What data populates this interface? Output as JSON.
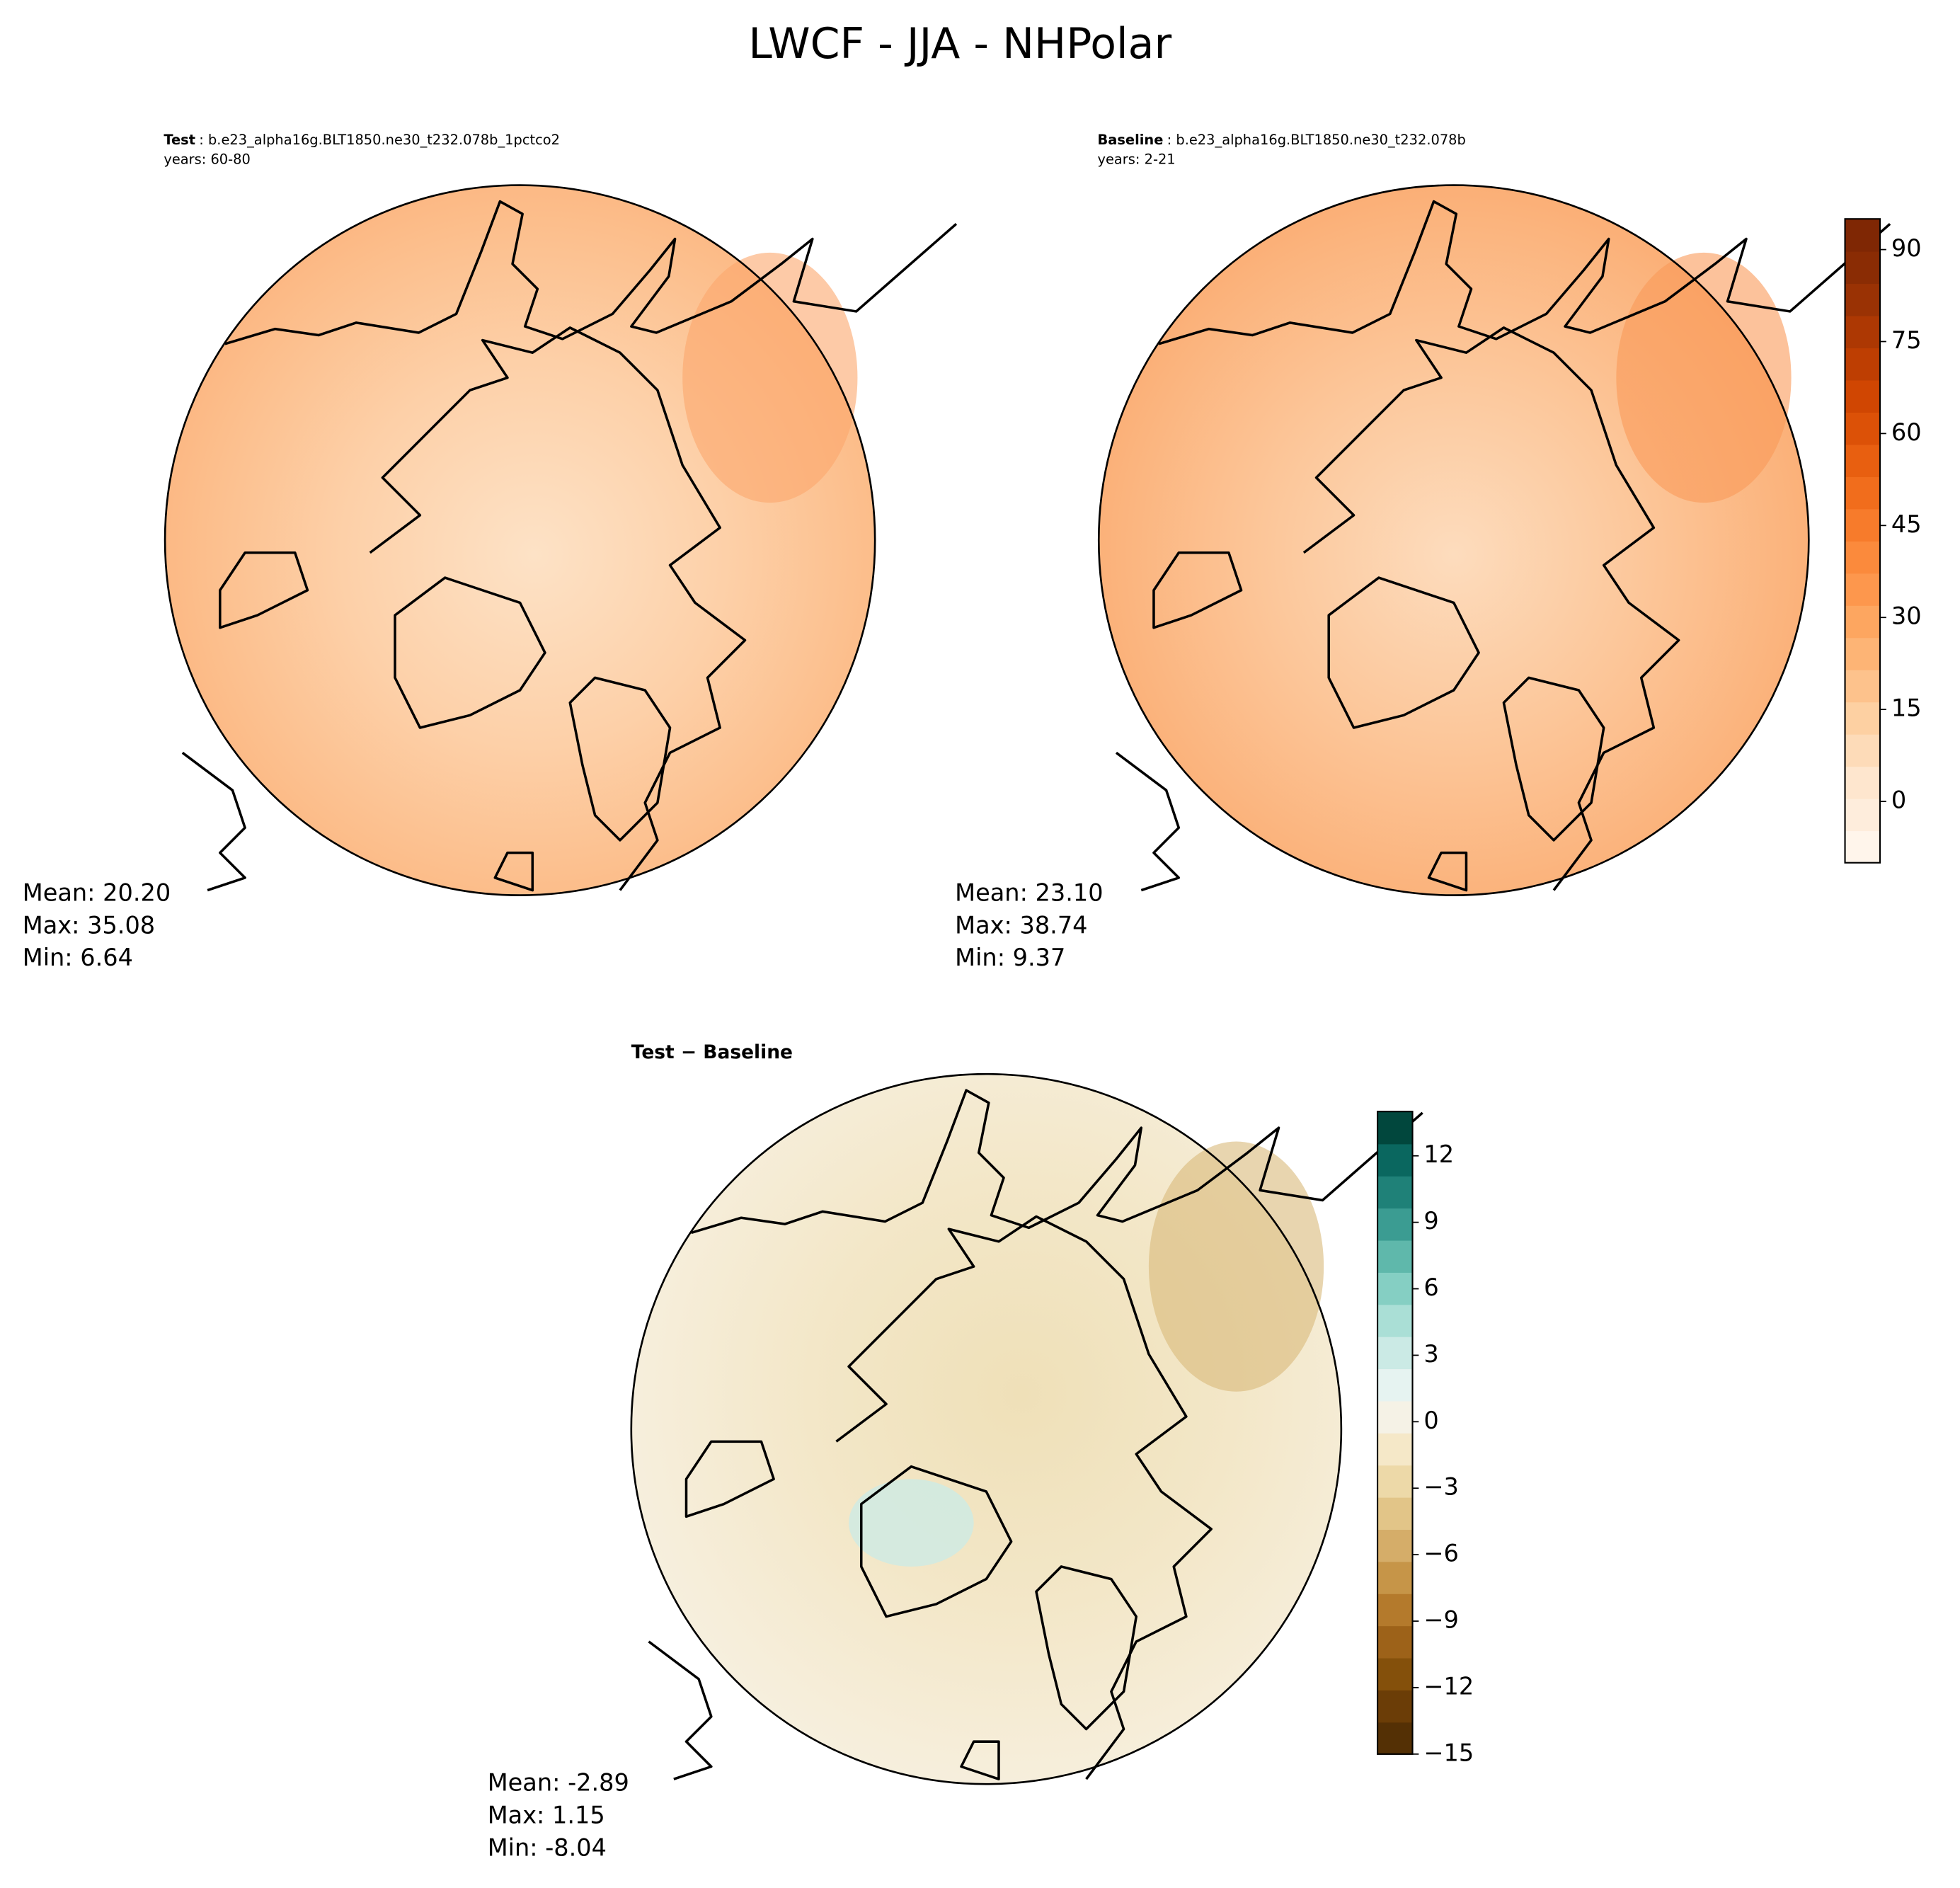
{
  "title": "LWCF - JJA - NHPolar",
  "panels": [
    {
      "label": "Test",
      "case": ": b.e23_alpha16g.BLT1850.ne30_t232.078b_1pctco2",
      "years": "years: 60-80",
      "stats": [
        "Mean: 20.20",
        "Max: 35.08",
        "Min:  6.64"
      ]
    },
    {
      "label": "Baseline",
      "case": ": b.e23_alpha16g.BLT1850.ne30_t232.078b",
      "years": "years: 2-21",
      "stats": [
        "Mean: 23.10",
        "Max: 38.74",
        "Min:  9.37"
      ]
    },
    {
      "label": "Test − Baseline",
      "stats": [
        "Mean: -2.89",
        "Max:  1.15",
        "Min: -8.04"
      ]
    }
  ],
  "colorbars": [
    {
      "lim": [
        -10,
        95
      ],
      "ticks": [
        0,
        15,
        30,
        45,
        60,
        75,
        90
      ],
      "colors": [
        "#fff5eb",
        "#feeddc",
        "#fee6ce",
        "#fddbb8",
        "#fdd0a2",
        "#fdc28c",
        "#fdb475",
        "#fda660",
        "#fd974d",
        "#fb8a3c",
        "#f77b2b",
        "#f16d1c",
        "#e85f10",
        "#dc5107",
        "#d04602",
        "#be3e02",
        "#ad3803",
        "#9a3204",
        "#8a2c04",
        "#7f2704"
      ]
    },
    {
      "lim": [
        -15,
        14
      ],
      "ticks": [
        {
          "value": -15,
          "label": "−15"
        },
        {
          "value": -12,
          "label": "−12"
        },
        {
          "value": -9,
          "label": "−9"
        },
        {
          "value": -6,
          "label": "−6"
        },
        {
          "value": -3,
          "label": "−3"
        },
        0,
        3,
        6,
        9,
        12
      ],
      "colors": [
        "#543005",
        "#6b3d07",
        "#84500b",
        "#9d6219",
        "#b47a2c",
        "#c69548",
        "#d5ad69",
        "#e2c588",
        "#edd9a8",
        "#f5e8c8",
        "#f5f2e6",
        "#e6f3f1",
        "#cbeae5",
        "#aadfd6",
        "#85cfc3",
        "#5fb8ab",
        "#3b9c92",
        "#1f8178",
        "#0a675f",
        "#01473d"
      ]
    }
  ]
}
